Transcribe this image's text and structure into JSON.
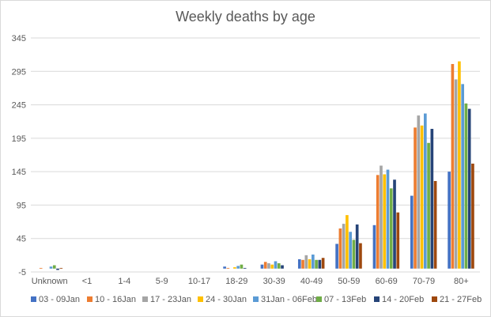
{
  "chart_data": {
    "type": "bar",
    "title": "Weekly deaths by age",
    "xlabel": "",
    "ylabel": "",
    "ylim": [
      -5,
      345
    ],
    "yticks": [
      -5,
      45,
      95,
      145,
      195,
      245,
      295,
      345
    ],
    "ytick_labels": [
      "-5",
      "45",
      "95",
      "145",
      "195",
      "245",
      "295",
      "345"
    ],
    "grid": "horizontal",
    "legend_position": "bottom",
    "categories": [
      "Unknown",
      "<1",
      "1-4",
      "5-9",
      "10-17",
      "18-29",
      "30-39",
      "40-49",
      "50-59",
      "60-69",
      "70-79",
      "80+"
    ],
    "series": [
      {
        "name": "03 - 09Jan",
        "color": "#4472c4",
        "values": [
          0,
          0,
          0,
          0,
          0,
          3,
          6,
          14,
          37,
          65,
          109,
          145
        ]
      },
      {
        "name": "10 - 16Jan",
        "color": "#ed7d31",
        "values": [
          1,
          0,
          0,
          0,
          0,
          1,
          10,
          13,
          60,
          140,
          211,
          306
        ]
      },
      {
        "name": "17 - 23Jan",
        "color": "#a5a5a5",
        "values": [
          0,
          0,
          0,
          0,
          0,
          0,
          8,
          20,
          67,
          154,
          229,
          283
        ]
      },
      {
        "name": "24 - 30Jan",
        "color": "#ffc000",
        "values": [
          0,
          0,
          0,
          0,
          0,
          2,
          6,
          14,
          80,
          141,
          214,
          310
        ]
      },
      {
        "name": "31Jan - 06Feb",
        "color": "#5b9bd5",
        "values": [
          3,
          0,
          0,
          0,
          0,
          4,
          11,
          21,
          55,
          148,
          232,
          276
        ]
      },
      {
        "name": "07 - 13Feb",
        "color": "#70ad47",
        "values": [
          5,
          0,
          0,
          0,
          0,
          6,
          8,
          13,
          43,
          120,
          188,
          247
        ]
      },
      {
        "name": "14 - 20Feb",
        "color": "#264478",
        "values": [
          -2,
          0,
          0,
          0,
          0,
          1,
          5,
          13,
          66,
          133,
          209,
          239
        ]
      },
      {
        "name": "21 - 27Feb",
        "color": "#9e480e",
        "values": [
          1,
          0,
          0,
          0,
          0,
          0,
          0,
          16,
          38,
          84,
          131,
          157
        ]
      }
    ]
  }
}
